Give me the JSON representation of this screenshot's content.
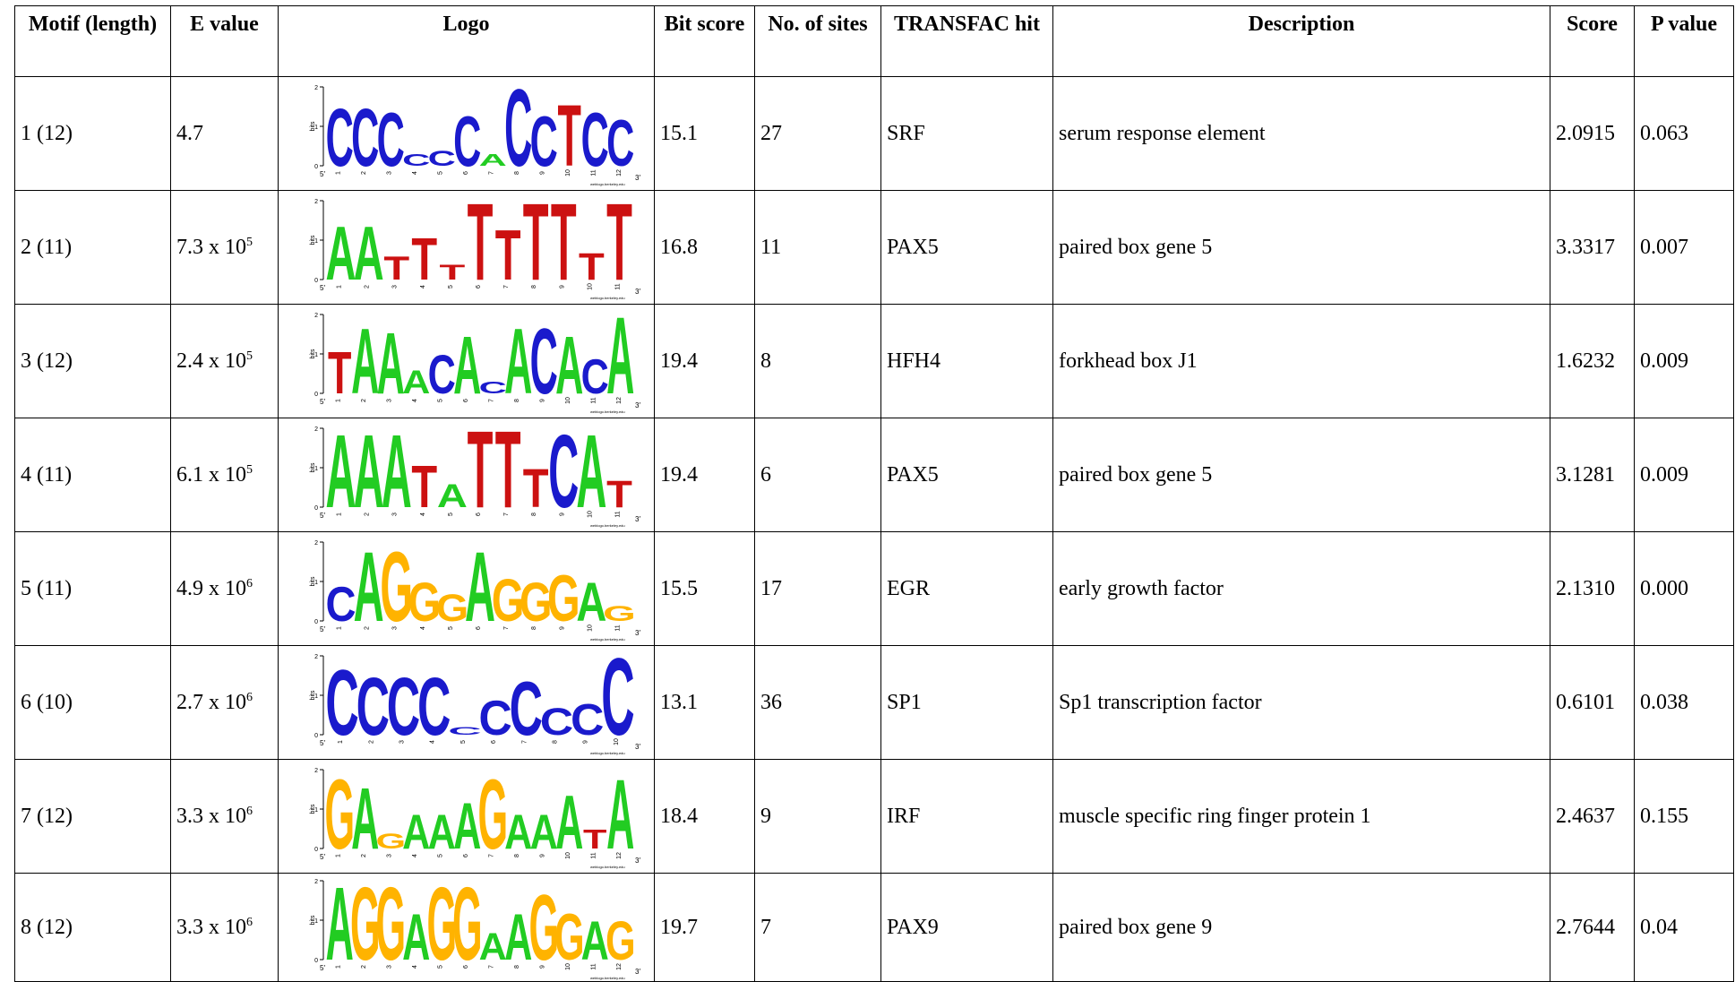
{
  "headers": {
    "motif": "Motif (length)",
    "evalue": "E value",
    "logo": "Logo",
    "bitscore": "Bit score",
    "sites": "No. of sites",
    "transfac": "TRANSFAC hit",
    "description": "Description",
    "score": "Score",
    "pvalue": "P value"
  },
  "logo_text": {
    "y_axis": "bits",
    "tick_0": "0",
    "tick_1": "1",
    "tick_2": "2",
    "end5": "5′",
    "end3": "3′",
    "credit": "weblogo.berkeley.edu"
  },
  "base_colors": {
    "A": "#22cc22",
    "C": "#1a1acc",
    "G": "#ffb300",
    "T": "#cc1111"
  },
  "rows": [
    {
      "motif": "1 (12)",
      "evalue_base": "4.7",
      "evalue_exp": "",
      "bitscore": "15.1",
      "sites": "27",
      "transfac": "SRF",
      "description": "serum response element",
      "score": "2.0915",
      "pvalue": "0.063",
      "logo": [
        [
          "C",
          1.5
        ],
        [
          "C",
          1.5
        ],
        [
          "C",
          1.4
        ],
        [
          "C",
          0.3
        ],
        [
          "C",
          0.4
        ],
        [
          "C",
          1.3
        ],
        [
          "A",
          0.3
        ],
        [
          "C",
          2.0
        ],
        [
          "C",
          1.3
        ],
        [
          "T",
          1.6
        ],
        [
          "C",
          1.4
        ],
        [
          "C",
          1.2
        ]
      ]
    },
    {
      "motif": "2 (11)",
      "evalue_base": "7.3 x 10",
      "evalue_exp": "5",
      "bitscore": "16.8",
      "sites": "11",
      "transfac": "PAX5",
      "description": "paired box gene 5",
      "score": "3.3317",
      "pvalue": "0.007",
      "logo": [
        [
          "A",
          1.4
        ],
        [
          "A",
          1.4
        ],
        [
          "T",
          0.6
        ],
        [
          "T",
          1.1
        ],
        [
          "T",
          0.4
        ],
        [
          "T",
          2.0
        ],
        [
          "T",
          1.3
        ],
        [
          "T",
          2.0
        ],
        [
          "T",
          2.0
        ],
        [
          "T",
          0.7
        ],
        [
          "T",
          2.0
        ]
      ]
    },
    {
      "motif": "3 (12)",
      "evalue_base": "2.4 x 10",
      "evalue_exp": "5",
      "bitscore": "19.4",
      "sites": "8",
      "transfac": "HFH4",
      "description": "forkhead box J1",
      "score": "1.6232",
      "pvalue": "0.009",
      "logo": [
        [
          "T",
          1.1
        ],
        [
          "A",
          1.7
        ],
        [
          "A",
          1.6
        ],
        [
          "A",
          0.6
        ],
        [
          "C",
          1.0
        ],
        [
          "A",
          1.5
        ],
        [
          "C",
          0.3
        ],
        [
          "A",
          1.7
        ],
        [
          "C",
          1.7
        ],
        [
          "A",
          1.5
        ],
        [
          "C",
          0.9
        ],
        [
          "A",
          2.0
        ]
      ]
    },
    {
      "motif": "4 (11)",
      "evalue_base": "6.1 x 10",
      "evalue_exp": "5",
      "bitscore": "19.4",
      "sites": "6",
      "transfac": "PAX5",
      "description": "paired box gene 5",
      "score": "3.1281",
      "pvalue": "0.009",
      "logo": [
        [
          "A",
          1.9
        ],
        [
          "A",
          1.9
        ],
        [
          "A",
          1.9
        ],
        [
          "T",
          1.1
        ],
        [
          "A",
          0.6
        ],
        [
          "T",
          2.0
        ],
        [
          "T",
          2.0
        ],
        [
          "T",
          1.0
        ],
        [
          "C",
          1.9
        ],
        [
          "A",
          1.9
        ],
        [
          "T",
          0.7
        ]
      ]
    },
    {
      "motif": "5 (11)",
      "evalue_base": "4.9 x 10",
      "evalue_exp": "6",
      "bitscore": "15.5",
      "sites": "17",
      "transfac": "EGR",
      "description": "early growth factor",
      "score": "2.1310",
      "pvalue": "0.000",
      "logo": [
        [
          "C",
          0.9
        ],
        [
          "A",
          1.8
        ],
        [
          "G",
          1.8
        ],
        [
          "G",
          1.0
        ],
        [
          "G",
          0.7
        ],
        [
          "A",
          1.8
        ],
        [
          "G",
          1.1
        ],
        [
          "G",
          1.0
        ],
        [
          "G",
          1.2
        ],
        [
          "A",
          1.0
        ],
        [
          "G",
          0.4
        ]
      ]
    },
    {
      "motif": "6 (10)",
      "evalue_base": "2.7 x 10",
      "evalue_exp": "6",
      "bitscore": "13.1",
      "sites": "36",
      "transfac": "SP1",
      "description": "Sp1 transcription factor",
      "score": "0.6101",
      "pvalue": "0.038",
      "logo": [
        [
          "C",
          1.7
        ],
        [
          "C",
          1.5
        ],
        [
          "C",
          1.5
        ],
        [
          "C",
          1.5
        ],
        [
          "C",
          0.2
        ],
        [
          "C",
          0.9
        ],
        [
          "C",
          1.4
        ],
        [
          "C",
          0.7
        ],
        [
          "C",
          0.8
        ],
        [
          "C",
          2.0
        ]
      ]
    },
    {
      "motif": "7 (12)",
      "evalue_base": "3.3 x 10",
      "evalue_exp": "6",
      "bitscore": "18.4",
      "sites": "9",
      "transfac": "IRF",
      "description": "muscle specific ring finger protein 1",
      "score": "2.4637",
      "pvalue": "0.155",
      "logo": [
        [
          "G",
          1.8
        ],
        [
          "A",
          1.6
        ],
        [
          "G",
          0.4
        ],
        [
          "A",
          0.9
        ],
        [
          "A",
          0.9
        ],
        [
          "A",
          1.2
        ],
        [
          "G",
          1.8
        ],
        [
          "A",
          0.9
        ],
        [
          "A",
          0.9
        ],
        [
          "A",
          1.4
        ],
        [
          "T",
          0.5
        ],
        [
          "A",
          1.8
        ]
      ]
    },
    {
      "motif": "8 (12)",
      "evalue_base": "3.3 x 10",
      "evalue_exp": "6",
      "bitscore": "19.7",
      "sites": "7",
      "transfac": "PAX9",
      "description": "paired box gene 9",
      "score": "2.7644",
      "pvalue": "0.04",
      "logo": [
        [
          "A",
          1.9
        ],
        [
          "G",
          1.9
        ],
        [
          "G",
          1.9
        ],
        [
          "A",
          1.2
        ],
        [
          "G",
          1.9
        ],
        [
          "G",
          1.9
        ],
        [
          "A",
          0.7
        ],
        [
          "A",
          1.2
        ],
        [
          "G",
          1.7
        ],
        [
          "G",
          1.2
        ],
        [
          "A",
          1.0
        ],
        [
          "G",
          1.0
        ]
      ]
    }
  ]
}
